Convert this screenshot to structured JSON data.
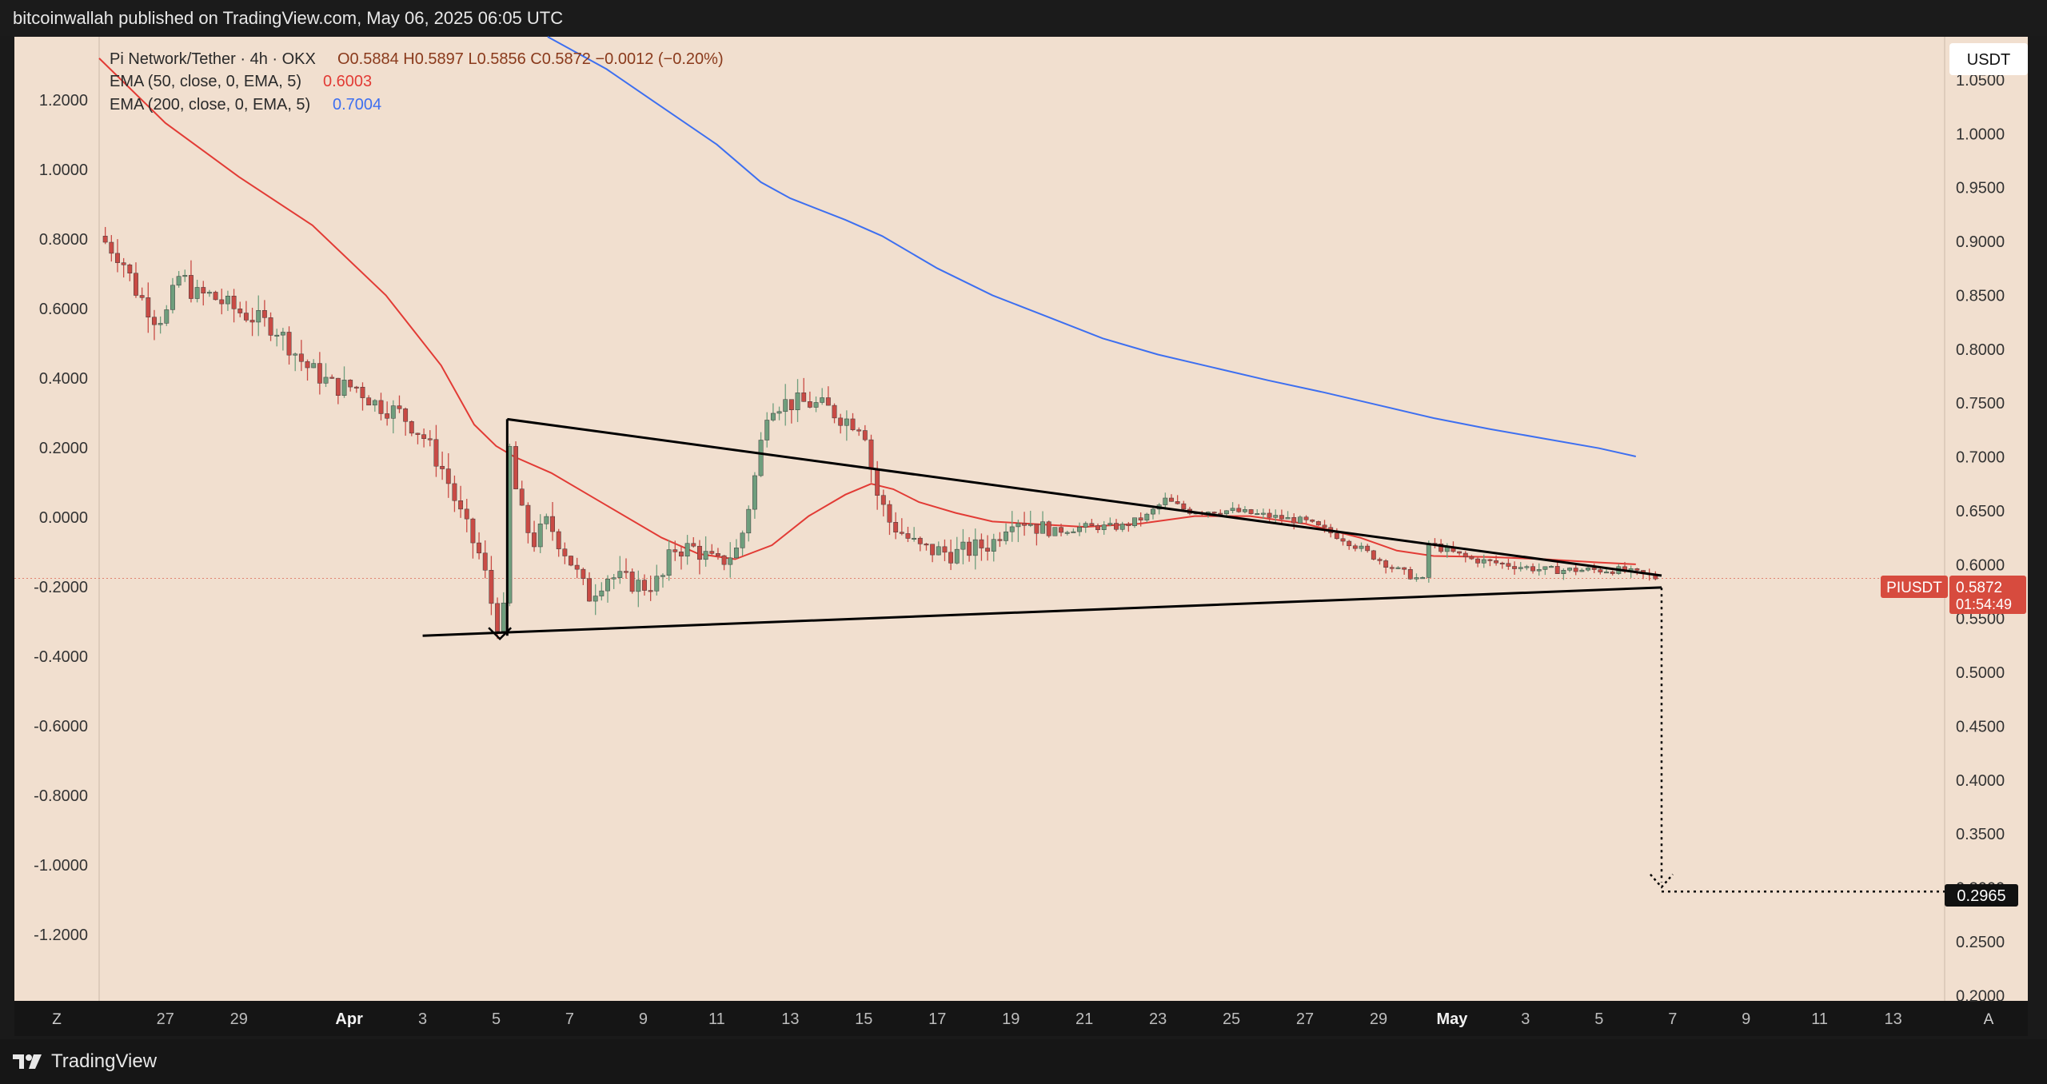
{
  "header": {
    "published_by": "bitcoinwallah published on TradingView.com, May 06, 2025 06:05 UTC"
  },
  "footer": {
    "brand": "TradingView"
  },
  "buttons": {
    "currency": "USDT",
    "left_scale": "Z",
    "auto_scale": "A"
  },
  "legend": {
    "symbol": "Pi Network/Tether · 4h · OKX",
    "ohlc": "O0.5884 H0.5897 L0.5856 C0.5872 −0.0012 (−0.20%)",
    "ema50_label": "EMA (50, close, 0, EMA, 5)",
    "ema50_value": "0.6003",
    "ema200_label": "EMA (200, close, 0, EMA, 5)",
    "ema200_value": "0.7004"
  },
  "colors": {
    "chart_bg": "#f1dfcf",
    "up": "#6f9e7d",
    "down": "#c94b45",
    "ema50": "#e23b35",
    "ema200": "#3d6ff0",
    "price_tag": "#d74b3e",
    "target_tag": "#111111"
  },
  "price_tag": {
    "ticker": "PIUSDT",
    "price": "0.5872",
    "countdown": "01:54:49"
  },
  "target_tag": {
    "price": "0.2965"
  },
  "chart_data": {
    "type": "candlestick",
    "title": "Pi Network/Tether · 4h · OKX",
    "right_axis": {
      "ticks": [
        "1.0500",
        "1.0000",
        "0.9500",
        "0.9000",
        "0.8500",
        "0.8000",
        "0.7500",
        "0.7000",
        "0.6500",
        "0.6000",
        "0.5500",
        "0.5000",
        "0.4500",
        "0.4000",
        "0.3500",
        "0.3000",
        "0.2500",
        "0.2000"
      ],
      "values": [
        1.05,
        1.0,
        0.95,
        0.9,
        0.85,
        0.8,
        0.75,
        0.7,
        0.65,
        0.6,
        0.55,
        0.5,
        0.45,
        0.4,
        0.35,
        0.3,
        0.25,
        0.2
      ],
      "ylim": [
        0.195,
        1.09
      ]
    },
    "left_axis": {
      "ticks": [
        "1.2000",
        "1.0000",
        "0.8000",
        "0.6000",
        "0.4000",
        "0.2000",
        "0.0000",
        "-0.2000",
        "-0.4000",
        "-0.6000",
        "-0.8000",
        "-1.0000",
        "-1.2000"
      ],
      "values": [
        1.2,
        1.0,
        0.8,
        0.6,
        0.4,
        0.2,
        0.0,
        -0.2,
        -0.4,
        -0.6,
        -0.8,
        -1.0,
        -1.2
      ]
    },
    "x_axis": {
      "ticks": [
        {
          "label": "27",
          "day": -4
        },
        {
          "label": "29",
          "day": -2
        },
        {
          "label": "Apr",
          "day": 1,
          "bold": true
        },
        {
          "label": "3",
          "day": 3
        },
        {
          "label": "5",
          "day": 5
        },
        {
          "label": "7",
          "day": 7
        },
        {
          "label": "9",
          "day": 9
        },
        {
          "label": "11",
          "day": 11
        },
        {
          "label": "13",
          "day": 13
        },
        {
          "label": "15",
          "day": 15
        },
        {
          "label": "17",
          "day": 17
        },
        {
          "label": "19",
          "day": 19
        },
        {
          "label": "21",
          "day": 21
        },
        {
          "label": "23",
          "day": 23
        },
        {
          "label": "25",
          "day": 25
        },
        {
          "label": "27",
          "day": 27
        },
        {
          "label": "29",
          "day": 29
        },
        {
          "label": "May",
          "day": 31,
          "bold": true
        },
        {
          "label": "3",
          "day": 33
        },
        {
          "label": "5",
          "day": 35
        },
        {
          "label": "7",
          "day": 37
        },
        {
          "label": "9",
          "day": 39
        },
        {
          "label": "11",
          "day": 41
        },
        {
          "label": "13",
          "day": 43
        }
      ],
      "xlim_days": [
        -5.8,
        44.4
      ]
    },
    "anchors": [
      [
        -5.8,
        0.905
      ],
      [
        -5.2,
        0.885
      ],
      [
        -4.8,
        0.855
      ],
      [
        -4.3,
        0.83
      ],
      [
        -4.0,
        0.83
      ],
      [
        -3.6,
        0.87
      ],
      [
        -3.2,
        0.85
      ],
      [
        -2.8,
        0.85
      ],
      [
        -2.0,
        0.835
      ],
      [
        -1.0,
        0.82
      ],
      [
        -0.2,
        0.785
      ],
      [
        0.6,
        0.765
      ],
      [
        1.2,
        0.765
      ],
      [
        1.7,
        0.75
      ],
      [
        2.4,
        0.74
      ],
      [
        3.0,
        0.72
      ],
      [
        3.6,
        0.685
      ],
      [
        4.1,
        0.64
      ],
      [
        4.6,
        0.605
      ],
      [
        4.9,
        0.56
      ],
      [
        5.05,
        0.545
      ],
      [
        5.2,
        0.555
      ],
      [
        5.35,
        0.71
      ],
      [
        5.6,
        0.655
      ],
      [
        6.0,
        0.62
      ],
      [
        6.4,
        0.64
      ],
      [
        7.0,
        0.605
      ],
      [
        7.5,
        0.57
      ],
      [
        8.0,
        0.59
      ],
      [
        9.0,
        0.58
      ],
      [
        9.5,
        0.585
      ],
      [
        9.8,
        0.615
      ],
      [
        10.4,
        0.615
      ],
      [
        11.0,
        0.6
      ],
      [
        11.6,
        0.615
      ],
      [
        12.0,
        0.675
      ],
      [
        12.4,
        0.75
      ],
      [
        13.0,
        0.75
      ],
      [
        13.5,
        0.75
      ],
      [
        14.0,
        0.745
      ],
      [
        14.5,
        0.735
      ],
      [
        15.0,
        0.73
      ],
      [
        15.3,
        0.67
      ],
      [
        15.7,
        0.64
      ],
      [
        16.5,
        0.615
      ],
      [
        17.5,
        0.61
      ],
      [
        18.5,
        0.62
      ],
      [
        19.0,
        0.645
      ],
      [
        19.5,
        0.64
      ],
      [
        20.0,
        0.63
      ],
      [
        21.0,
        0.635
      ],
      [
        22.0,
        0.635
      ],
      [
        22.7,
        0.645
      ],
      [
        23.2,
        0.66
      ],
      [
        23.8,
        0.65
      ],
      [
        25.0,
        0.65
      ],
      [
        26.0,
        0.645
      ],
      [
        27.0,
        0.64
      ],
      [
        28.0,
        0.625
      ],
      [
        29.0,
        0.605
      ],
      [
        29.5,
        0.595
      ],
      [
        30.2,
        0.585
      ],
      [
        30.35,
        0.62
      ],
      [
        30.7,
        0.615
      ],
      [
        31.5,
        0.605
      ],
      [
        32.5,
        0.6
      ],
      [
        33.5,
        0.595
      ],
      [
        34.5,
        0.595
      ],
      [
        35.5,
        0.595
      ],
      [
        36.3,
        0.59
      ],
      [
        36.6,
        0.5872
      ]
    ],
    "ema50": {
      "name": "EMA (50, close, 0, EMA, 5)",
      "points": [
        [
          -5.8,
          1.07
        ],
        [
          -4.0,
          1.01
        ],
        [
          -2.0,
          0.96
        ],
        [
          0.0,
          0.915
        ],
        [
          2.0,
          0.85
        ],
        [
          3.5,
          0.785
        ],
        [
          4.4,
          0.73
        ],
        [
          5.0,
          0.71
        ],
        [
          5.5,
          0.7
        ],
        [
          6.5,
          0.685
        ],
        [
          8.0,
          0.655
        ],
        [
          9.5,
          0.625
        ],
        [
          10.5,
          0.61
        ],
        [
          11.5,
          0.605
        ],
        [
          12.5,
          0.618
        ],
        [
          13.5,
          0.645
        ],
        [
          14.5,
          0.665
        ],
        [
          15.2,
          0.675
        ],
        [
          15.8,
          0.67
        ],
        [
          16.5,
          0.658
        ],
        [
          17.5,
          0.648
        ],
        [
          18.5,
          0.64
        ],
        [
          19.5,
          0.638
        ],
        [
          21.0,
          0.635
        ],
        [
          22.5,
          0.638
        ],
        [
          24.0,
          0.645
        ],
        [
          25.5,
          0.645
        ],
        [
          27.0,
          0.638
        ],
        [
          28.5,
          0.625
        ],
        [
          29.5,
          0.613
        ],
        [
          30.5,
          0.608
        ],
        [
          32.0,
          0.607
        ],
        [
          33.5,
          0.605
        ],
        [
          35.0,
          0.602
        ],
        [
          36.0,
          0.6003
        ]
      ]
    },
    "ema200": {
      "name": "EMA (200, close, 0, EMA, 5)",
      "points": [
        [
          6.4,
          1.09
        ],
        [
          8.0,
          1.06
        ],
        [
          9.5,
          1.025
        ],
        [
          11.0,
          0.99
        ],
        [
          12.2,
          0.955
        ],
        [
          13.0,
          0.94
        ],
        [
          14.5,
          0.92
        ],
        [
          15.5,
          0.905
        ],
        [
          17.0,
          0.875
        ],
        [
          18.5,
          0.85
        ],
        [
          20.0,
          0.83
        ],
        [
          21.5,
          0.81
        ],
        [
          23.0,
          0.795
        ],
        [
          24.5,
          0.783
        ],
        [
          26.0,
          0.771
        ],
        [
          27.5,
          0.76
        ],
        [
          29.0,
          0.748
        ],
        [
          30.5,
          0.736
        ],
        [
          32.0,
          0.726
        ],
        [
          33.5,
          0.717
        ],
        [
          35.0,
          0.708
        ],
        [
          36.0,
          0.7004
        ]
      ]
    },
    "annotations": {
      "upper_trendline": [
        [
          5.3,
          0.735
        ],
        [
          36.7,
          0.5898
        ]
      ],
      "lower_trendline": [
        [
          3.0,
          0.534
        ],
        [
          36.7,
          0.5788
        ]
      ],
      "pole": [
        [
          5.3,
          0.534
        ],
        [
          5.3,
          0.735
        ]
      ],
      "projection_drop": [
        [
          36.7,
          0.5785
        ],
        [
          36.7,
          0.305
        ]
      ],
      "target_line": [
        [
          36.7,
          0.2965
        ],
        [
          44.4,
          0.2965
        ]
      ]
    }
  }
}
